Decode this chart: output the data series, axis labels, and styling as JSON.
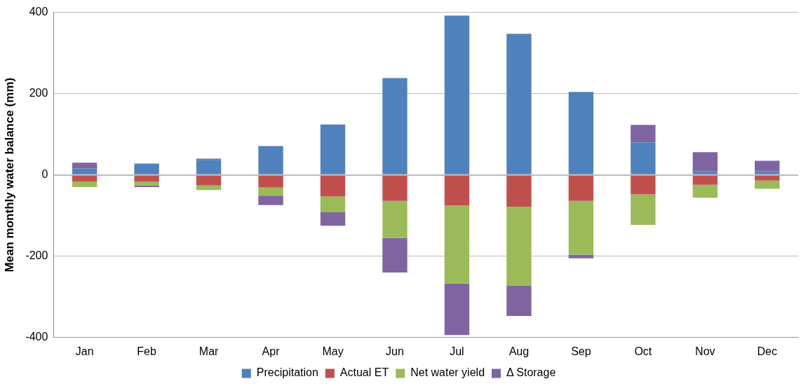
{
  "chart_data": {
    "type": "bar",
    "stacked": true,
    "ylabel": "Mean monthly water balance (mm)",
    "categories": [
      "Jan",
      "Feb",
      "Mar",
      "Apr",
      "May",
      "Jun",
      "Jul",
      "Aug",
      "Sep",
      "Oct",
      "Nov",
      "Dec"
    ],
    "series": [
      {
        "name": "Precipitation",
        "color": "#4f81bd",
        "values": [
          16,
          28,
          37,
          71,
          124,
          238,
          392,
          347,
          204,
          80,
          9,
          9
        ]
      },
      {
        "name": "Actual ET",
        "color": "#c0504d",
        "values": [
          -17,
          -17,
          -26,
          -31,
          -53,
          -64,
          -75,
          -78,
          -64,
          -48,
          -24,
          -14
        ]
      },
      {
        "name": "Net water yield",
        "color": "#9bbb59",
        "values": [
          -13,
          -9,
          -11,
          -20,
          -39,
          -91,
          -192,
          -195,
          -132,
          -75,
          -32,
          -20
        ]
      },
      {
        "name": "Δ Storage",
        "color": "#8064a2",
        "values": [
          14,
          -4,
          3,
          -23,
          -33,
          -85,
          -127,
          -74,
          -9,
          43,
          47,
          26
        ]
      }
    ],
    "ylim": [
      -400,
      400
    ],
    "yticks": [
      -400,
      -200,
      0,
      200,
      400
    ],
    "grid": "y",
    "legend": "bottom"
  }
}
